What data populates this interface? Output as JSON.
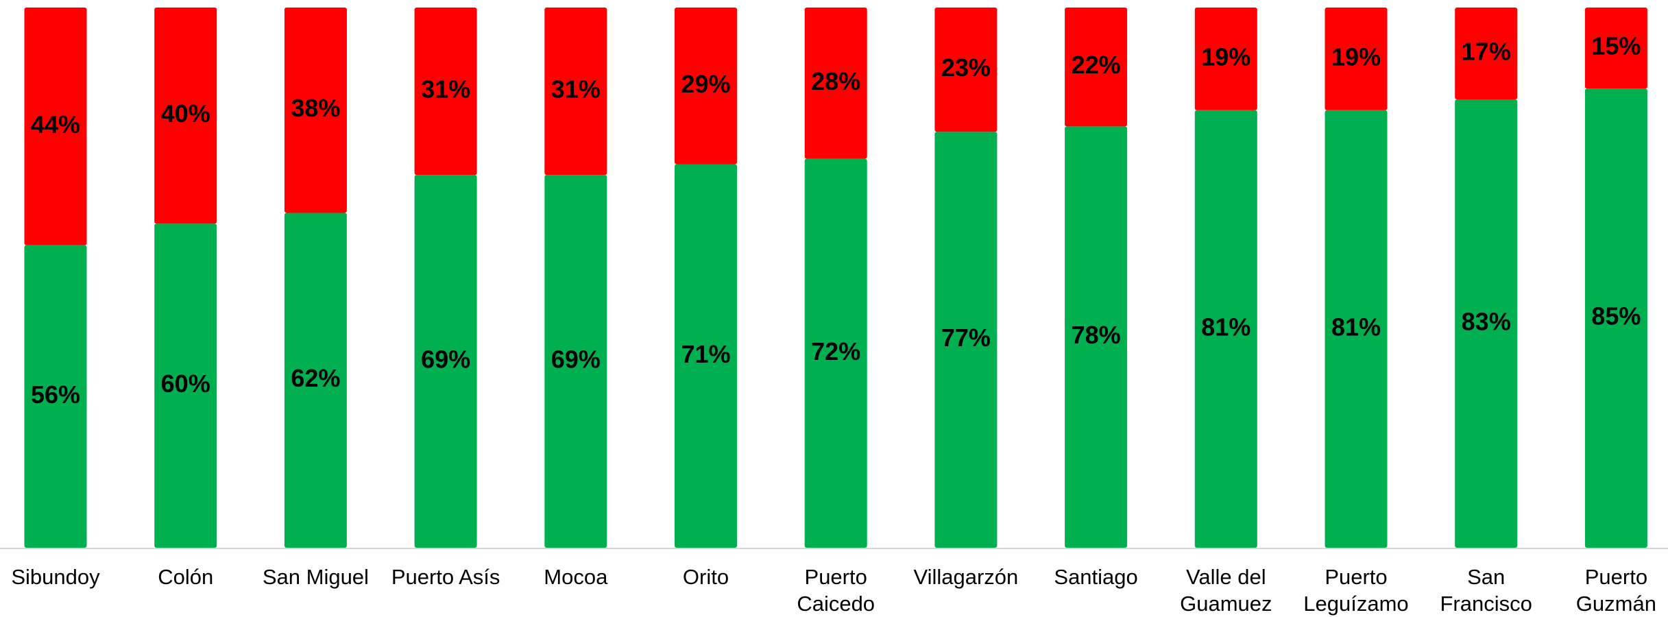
{
  "chart_data": {
    "type": "stacked_bar",
    "categories": [
      "Sibundoy",
      "Colón",
      "San Miguel",
      "Puerto Asís",
      "Mocoa",
      "Orito",
      "Puerto Caicedo",
      "Villagarzón",
      "Santiago",
      "Valle del Guamuez",
      "Puerto Leguízamo",
      "San Francisco",
      "Puerto Guzmán"
    ],
    "series": [
      {
        "color": "#00b050",
        "values": [
          56,
          60,
          62,
          69,
          69,
          71,
          72,
          77,
          78,
          81,
          81,
          83,
          85
        ],
        "value_labels": [
          "56%",
          "60%",
          "62%",
          "69%",
          "69%",
          "71%",
          "72%",
          "77%",
          "78%",
          "81%",
          "81%",
          "83%",
          "85%"
        ]
      },
      {
        "color": "#ff0000",
        "values": [
          44,
          40,
          38,
          31,
          31,
          29,
          28,
          23,
          22,
          19,
          19,
          17,
          15
        ],
        "value_labels": [
          "44%",
          "40%",
          "38%",
          "31%",
          "31%",
          "29%",
          "28%",
          "23%",
          "22%",
          "19%",
          "19%",
          "17%",
          "15%"
        ]
      }
    ],
    "ylim": [
      0,
      100
    ]
  }
}
